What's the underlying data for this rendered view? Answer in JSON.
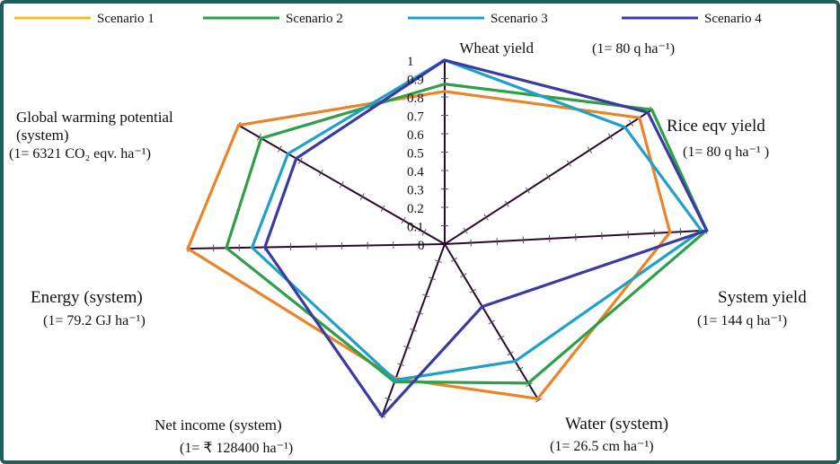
{
  "chart_data": {
    "type": "radar",
    "axes": [
      {
        "name": "Wheat yield",
        "unit": "(1=  80 q ha⁻¹)"
      },
      {
        "name": "Rice eqv yield",
        "unit": "(1=  80 q ha⁻¹ )"
      },
      {
        "name": "System yield",
        "unit": "(1=   144 q ha⁻¹)"
      },
      {
        "name": "Water (system)",
        "unit": "(1=   26.5 cm ha⁻¹)"
      },
      {
        "name": "Net income (system)",
        "unit": "(1=      ₹  128400 ha⁻¹)"
      },
      {
        "name": "Energy (system)",
        "unit": "(1= 79.2 GJ ha⁻¹)"
      },
      {
        "name": "Global warming potential",
        "name2": "(system)",
        "unit": "(1= 6321   CO₂ eqv. ha⁻¹)"
      }
    ],
    "ticks": [
      "0",
      "0.1",
      "0.2",
      "0.3",
      "0.4",
      "0.5",
      "0.6",
      "0.7",
      "0.8",
      "0.9",
      "1"
    ],
    "rlim": [
      0,
      1
    ],
    "series": [
      {
        "name": "Scenario 1",
        "color": "#f0c020",
        "values": [
          0.83,
          0.94,
          0.86,
          0.99,
          0.78,
          1.0,
          1.0
        ]
      },
      {
        "name": "Scenario 2",
        "color": "#2e9e48",
        "values": [
          0.87,
          1.0,
          1.0,
          0.89,
          0.8,
          0.85,
          0.89
        ]
      },
      {
        "name": "Scenario 3",
        "color": "#1fa0c8",
        "values": [
          1.0,
          0.87,
          0.98,
          0.75,
          0.79,
          0.75,
          0.76
        ]
      },
      {
        "name": "Scenario 4",
        "color": "#3a3aa0",
        "values": [
          1.0,
          0.98,
          1.0,
          0.4,
          1.0,
          0.7,
          0.72
        ]
      }
    ],
    "outline_color": "#e8852a",
    "axis_color": "#2a0a2a",
    "legend_position": "top"
  }
}
